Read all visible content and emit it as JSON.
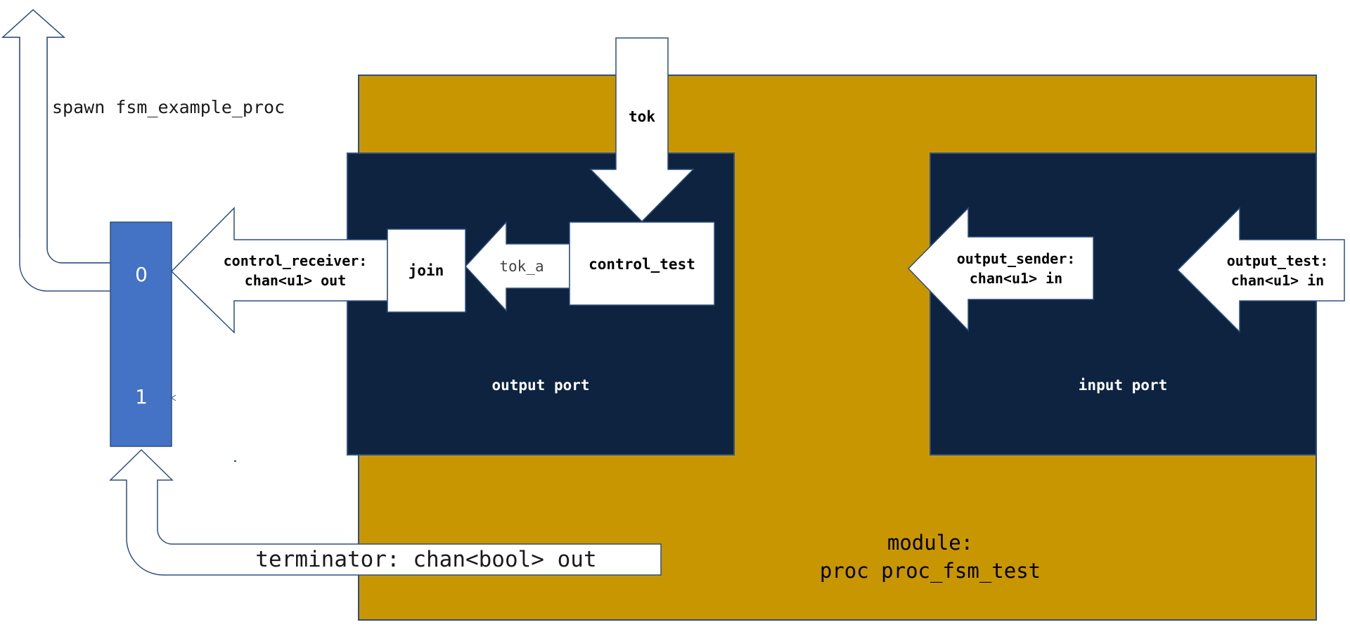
{
  "diagram": {
    "spawn_label": "spawn fsm_example_proc",
    "tok_label": "tok",
    "tok_a_label": "tok_a",
    "join_label": "join",
    "control_test_label": "control_test",
    "control_receiver_line1": "control_receiver:",
    "control_receiver_line2": "chan<u1> out",
    "output_port_label": "output port",
    "input_port_label": "input port",
    "output_sender_line1": "output_sender:",
    "output_sender_line2": "chan<u1> in",
    "output_test_line1": "output_test:",
    "output_test_line2": "chan<u1> in",
    "terminator_label": "terminator: chan<bool> out",
    "module_line1": "module:",
    "module_line2": "proc proc_fsm_test",
    "index_0": "0",
    "index_1": "1",
    "colors": {
      "module_fill": "#c89600",
      "port_fill": "#0d2340",
      "block_fill": "#4472c4",
      "outline": "#2f4f7f"
    }
  }
}
